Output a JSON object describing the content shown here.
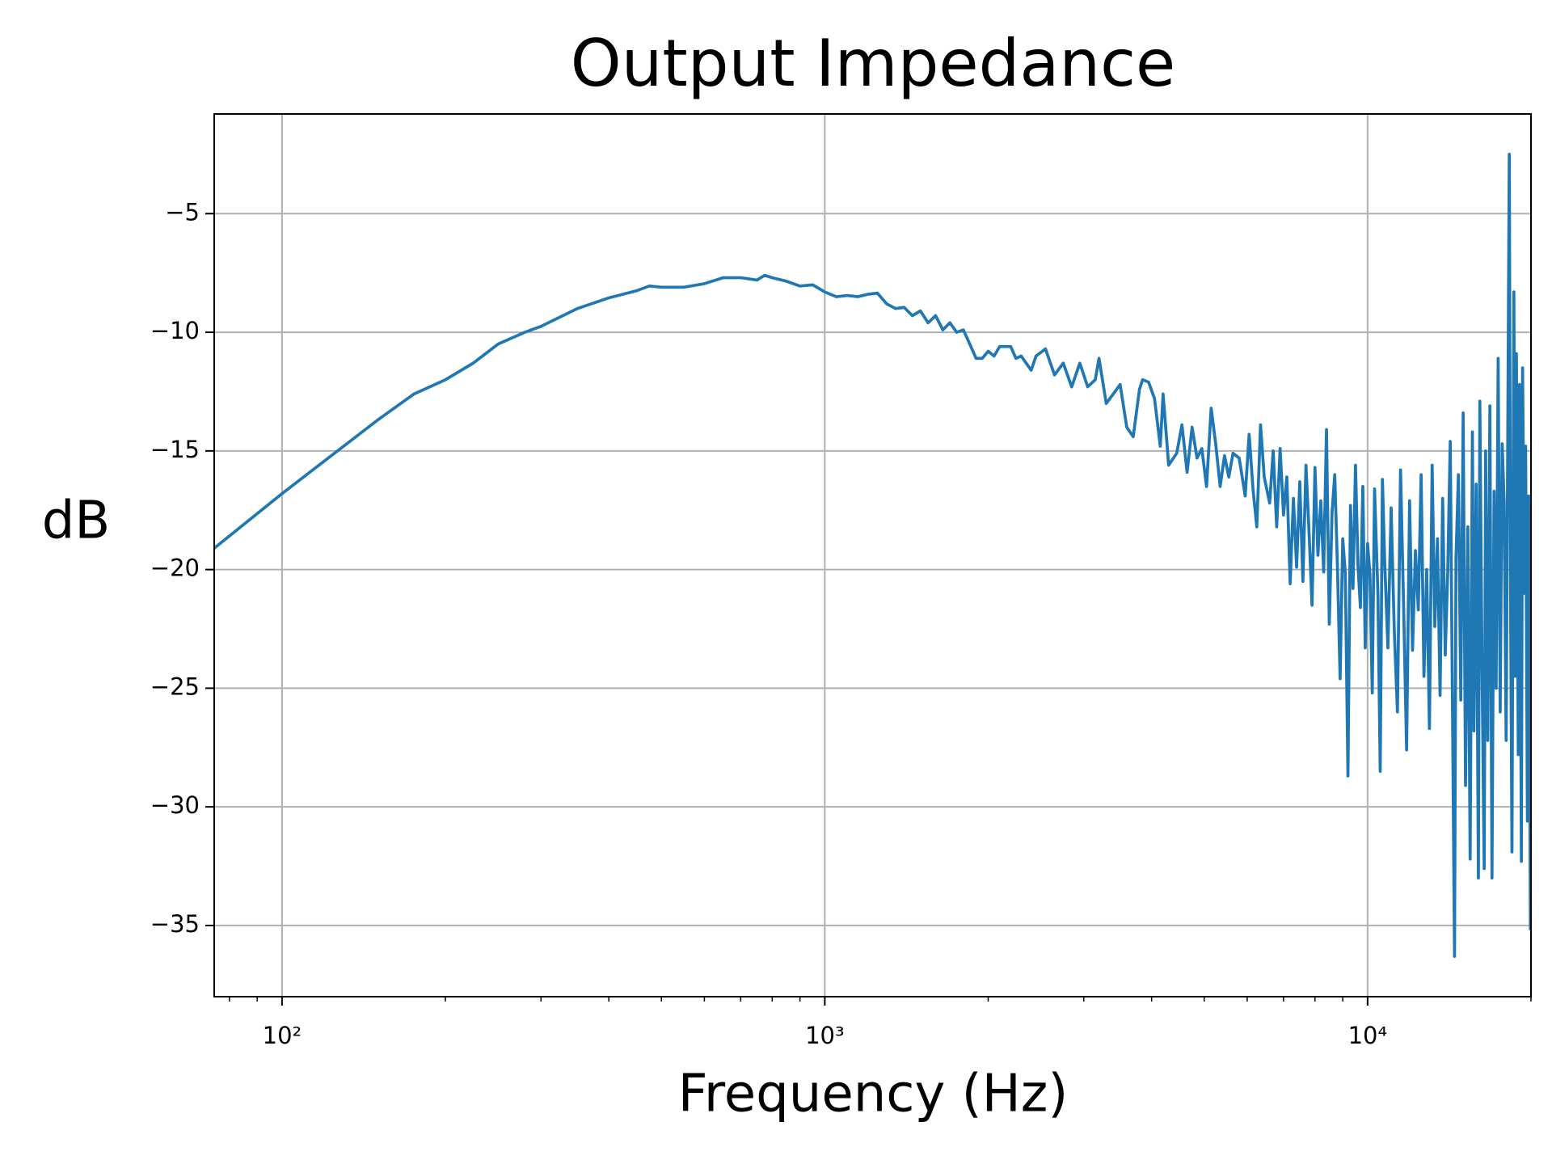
{
  "chart_data": {
    "type": "line",
    "title": "Output Impedance",
    "x_label": "Frequency (Hz)",
    "y_label": "dB",
    "xscale": "log",
    "grid": true,
    "color": "#1f77b4",
    "xlim": [
      75,
      20000
    ],
    "ylim": [
      -38,
      -0.8
    ],
    "xticks": [
      {
        "value": 100,
        "label": "10²"
      },
      {
        "value": 1000,
        "label": "10³"
      },
      {
        "value": 10000,
        "label": "10⁴"
      }
    ],
    "xminorticks": [
      80,
      90,
      200,
      300,
      400,
      500,
      600,
      700,
      800,
      900,
      2000,
      3000,
      4000,
      5000,
      6000,
      7000,
      8000,
      9000,
      20000
    ],
    "yticks": [
      {
        "value": -35,
        "label": "−35"
      },
      {
        "value": -30,
        "label": "−30"
      },
      {
        "value": -25,
        "label": "−25"
      },
      {
        "value": -20,
        "label": "−20"
      },
      {
        "value": -15,
        "label": "−15"
      },
      {
        "value": -10,
        "label": "−10"
      },
      {
        "value": -5,
        "label": "−5"
      }
    ],
    "x": [
      75,
      100,
      150,
      175,
      200,
      225,
      250,
      280,
      300,
      350,
      400,
      450,
      475,
      500,
      550,
      600,
      650,
      700,
      750,
      775,
      800,
      850,
      900,
      950,
      1000,
      1050,
      1100,
      1150,
      1200,
      1250,
      1300,
      1350,
      1400,
      1450,
      1500,
      1550,
      1600,
      1650,
      1700,
      1750,
      1800,
      1850,
      1900,
      1950,
      2000,
      2050,
      2100,
      2200,
      2250,
      2300,
      2400,
      2450,
      2550,
      2650,
      2750,
      2850,
      2950,
      3050,
      3150,
      3200,
      3300,
      3400,
      3500,
      3600,
      3700,
      3800,
      3850,
      3950,
      4050,
      4150,
      4200,
      4300,
      4450,
      4550,
      4650,
      4750,
      4850,
      4950,
      5050,
      5150,
      5250,
      5350,
      5450,
      5550,
      5650,
      5800,
      5950,
      6050,
      6150,
      6250,
      6350,
      6450,
      6600,
      6700,
      6800,
      6900,
      7000,
      7100,
      7200,
      7300,
      7400,
      7500,
      7600,
      7700,
      7800,
      7900,
      8000,
      8100,
      8200,
      8300,
      8400,
      8500,
      8600,
      8700,
      8800,
      8900,
      9000,
      9100,
      9200,
      9300,
      9400,
      9500,
      9600,
      9700,
      9800,
      9900,
      10000,
      10100,
      10200,
      10300,
      10450,
      10550,
      10650,
      10750,
      10900,
      11050,
      11200,
      11350,
      11500,
      11650,
      11800,
      11950,
      12100,
      12250,
      12400,
      12550,
      12700,
      12850,
      13000,
      13150,
      13300,
      13450,
      13600,
      13750,
      13900,
      14050,
      14200,
      14350,
      14460,
      14550,
      14700,
      14850,
      15000,
      15150,
      15300,
      15450,
      15600,
      15700,
      15850,
      16000,
      16100,
      16250,
      16400,
      16500,
      16650,
      16800,
      16950,
      17100,
      17250,
      17400,
      17550,
      17700,
      17850,
      18000,
      18240,
      18350,
      18450,
      18600,
      18700,
      18800,
      18950,
      19050,
      19200,
      19300,
      19450,
      19550,
      19700,
      19800,
      19950
    ],
    "values": [
      -19.1,
      -16.8,
      -13.7,
      -12.6,
      -12.0,
      -11.3,
      -10.5,
      -10.0,
      -9.75,
      -9.0,
      -8.55,
      -8.25,
      -8.05,
      -8.1,
      -8.1,
      -7.95,
      -7.7,
      -7.7,
      -7.8,
      -7.6,
      -7.7,
      -7.85,
      -8.05,
      -8.0,
      -8.3,
      -8.5,
      -8.45,
      -8.5,
      -8.4,
      -8.35,
      -8.8,
      -9.0,
      -8.95,
      -9.3,
      -9.1,
      -9.6,
      -9.3,
      -9.9,
      -9.6,
      -10.0,
      -9.9,
      -10.5,
      -11.1,
      -11.1,
      -10.8,
      -11.0,
      -10.6,
      -10.6,
      -11.1,
      -11.0,
      -11.6,
      -11.0,
      -10.7,
      -11.8,
      -11.3,
      -12.3,
      -11.3,
      -12.3,
      -12.0,
      -11.1,
      -13.0,
      -12.6,
      -12.2,
      -14.0,
      -14.4,
      -12.4,
      -12.0,
      -12.1,
      -12.8,
      -14.8,
      -12.6,
      -15.6,
      -15.1,
      -13.9,
      -15.9,
      -14.0,
      -15.3,
      -14.9,
      -16.5,
      -13.2,
      -14.7,
      -16.5,
      -15.2,
      -16.1,
      -15.1,
      -15.3,
      -16.9,
      -14.3,
      -16.6,
      -18.2,
      -13.9,
      -16.1,
      -17.2,
      -15.0,
      -18.2,
      -14.9,
      -17.7,
      -16.1,
      -20.6,
      -17.0,
      -19.9,
      -16.3,
      -20.5,
      -15.6,
      -18.4,
      -21.5,
      -15.7,
      -19.4,
      -17.1,
      -20.1,
      -14.1,
      -22.3,
      -17.6,
      -16.0,
      -19.9,
      -24.6,
      -18.7,
      -20.2,
      -28.7,
      -17.3,
      -20.8,
      -15.6,
      -19.8,
      -21.6,
      -16.5,
      -23.3,
      -18.9,
      -20.2,
      -25.2,
      -16.6,
      -21.1,
      -28.5,
      -16.2,
      -19.6,
      -23.3,
      -17.4,
      -22.6,
      -26.0,
      -15.8,
      -21.5,
      -27.6,
      -17.1,
      -23.4,
      -19.2,
      -21.7,
      -16.0,
      -24.5,
      -20.0,
      -26.7,
      -15.6,
      -22.4,
      -18.7,
      -25.3,
      -17.0,
      -23.6,
      -20.1,
      -14.6,
      -27.0,
      -36.3,
      -19.5,
      -16.0,
      -25.5,
      -13.4,
      -29.1,
      -18.2,
      -32.2,
      -14.2,
      -26.8,
      -16.4,
      -33.0,
      -12.9,
      -24.1,
      -32.6,
      -15.0,
      -27.2,
      -13.1,
      -33.0,
      -16.7,
      -25.0,
      -11.1,
      -26.0,
      -14.7,
      -17.2,
      -27.2,
      -2.5,
      -22.0,
      -31.9,
      -8.3,
      -24.5,
      -10.9,
      -27.8,
      -12.2,
      -32.3,
      -11.5,
      -21.0,
      -14.8,
      -30.6,
      -16.9,
      -35.2
    ]
  }
}
